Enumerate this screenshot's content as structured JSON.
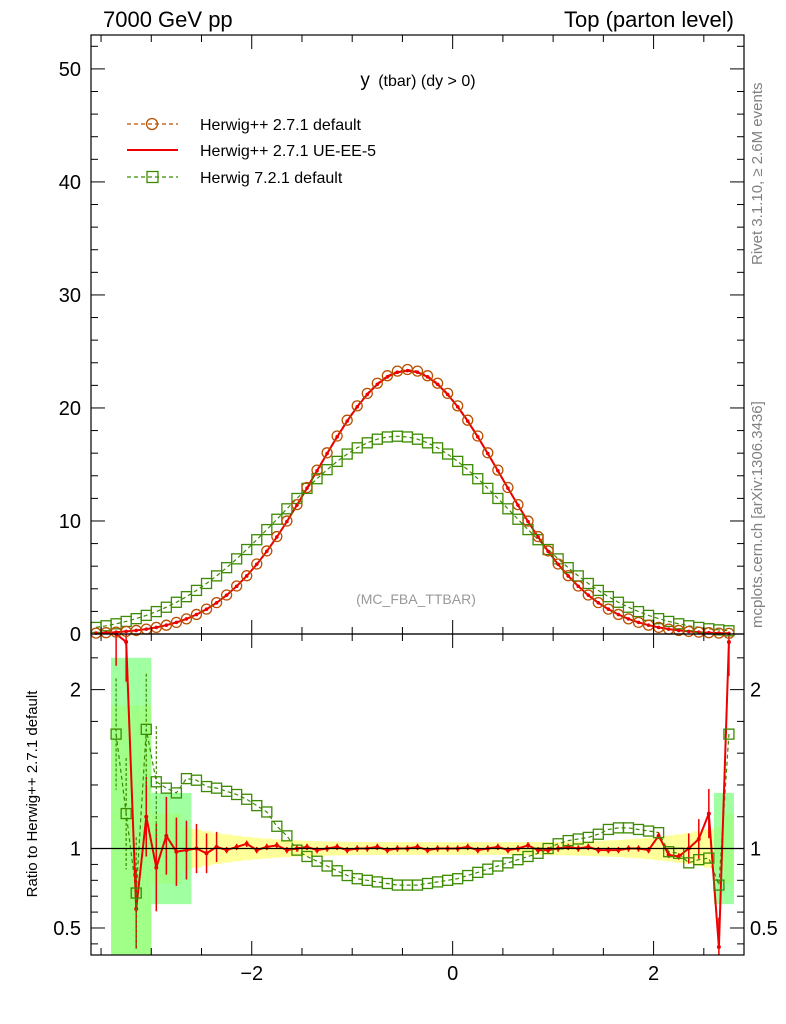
{
  "header": {
    "left": "7000 GeV pp",
    "right": "Top (parton level)"
  },
  "side_labels": {
    "top": "Rivet 3.1.10, ≥ 2.6M events",
    "bottom": "mcplots.cern.ch [arXiv:1306.3436]"
  },
  "plot_title_main": "y",
  "plot_title_sub": "(tbar) (dy > 0)",
  "watermark": "(MC_FBA_TTBAR)",
  "legend": [
    {
      "label": "Herwig++ 2.7.1 default",
      "color": "#b85000",
      "style": "dashed",
      "marker": "circle"
    },
    {
      "label": "Herwig++ 2.7.1 UE-EE-5",
      "color": "#ee0000",
      "style": "solid",
      "marker": "none"
    },
    {
      "label": "Herwig 7.2.1 default",
      "color": "#3b8a00",
      "style": "dashed",
      "marker": "square"
    }
  ],
  "chart_data": {
    "type": "line",
    "xlim": [
      -3.6,
      2.9
    ],
    "main": {
      "ylim": [
        0,
        53
      ],
      "yticks": [
        0,
        10,
        20,
        30,
        40,
        50
      ],
      "bands": [
        {
          "mu": -0.45,
          "amp": 23.4,
          "sigma": 0.92
        },
        {
          "mu": -0.45,
          "amp": 23.3,
          "sigma": 0.92
        },
        {
          "mu": -0.55,
          "amp": 17.5,
          "sigma": 1.15
        }
      ]
    },
    "ratio": {
      "ylim": [
        0.33,
        2.35
      ],
      "yticks": [
        0.5,
        1,
        2
      ],
      "ylabel": "Ratio to Herwig++ 2.7.1 default",
      "ue_ee5": {
        "x": [
          -3.35,
          -3.25,
          -3.15,
          -3.05,
          -2.95,
          -2.85,
          -2.75,
          -2.65,
          -2.55,
          -2.45,
          -2.35,
          -2.25,
          -2.15,
          -2.05,
          -1.95,
          -1.85,
          -1.75,
          -1.65,
          -1.55,
          -1.45,
          -1.35,
          -1.25,
          -1.15,
          -1.05,
          -0.95,
          -0.85,
          -0.75,
          -0.65,
          -0.55,
          -0.45,
          -0.35,
          -0.25,
          -0.15,
          -0.05,
          0.05,
          0.15,
          0.25,
          0.35,
          0.45,
          0.55,
          0.65,
          0.75,
          0.85,
          0.95,
          1.05,
          1.15,
          1.25,
          1.35,
          1.45,
          1.55,
          1.65,
          1.75,
          1.85,
          1.95,
          2.05,
          2.15,
          2.25,
          2.35,
          2.45,
          2.55,
          2.65,
          2.75
        ],
        "y": [
          2.4,
          2.3,
          0.62,
          1.2,
          0.88,
          1.08,
          0.98,
          0.99,
          1.0,
          0.97,
          1.01,
          0.99,
          1.01,
          1.03,
          0.99,
          1.01,
          1.02,
          0.99,
          1.0,
          1.01,
          0.99,
          1.0,
          1.01,
          0.99,
          1.0,
          1.0,
          1.01,
          0.99,
          1.0,
          1.0,
          1.01,
          0.99,
          1.0,
          1.0,
          1.0,
          1.01,
          0.99,
          1.0,
          1.01,
          0.99,
          1.0,
          1.02,
          0.99,
          0.99,
          1.0,
          1.01,
          1.0,
          1.01,
          0.99,
          0.99,
          0.99,
          1.0,
          1.0,
          0.99,
          1.08,
          0.96,
          0.95,
          1.0,
          1.06,
          1.22,
          0.38,
          2.3
        ]
      },
      "h7": {
        "x": [
          -3.35,
          -3.25,
          -3.15,
          -3.05,
          -2.95,
          -2.85,
          -2.75,
          -2.65,
          -2.55,
          -2.45,
          -2.35,
          -2.25,
          -2.15,
          -2.05,
          -1.95,
          -1.85,
          -1.75,
          -1.65,
          -1.55,
          -1.45,
          -1.35,
          -1.25,
          -1.15,
          -1.05,
          -0.95,
          -0.85,
          -0.75,
          -0.65,
          -0.55,
          -0.45,
          -0.35,
          -0.25,
          -0.15,
          -0.05,
          0.05,
          0.15,
          0.25,
          0.35,
          0.45,
          0.55,
          0.65,
          0.75,
          0.85,
          0.95,
          1.05,
          1.15,
          1.25,
          1.35,
          1.45,
          1.55,
          1.65,
          1.75,
          1.85,
          1.95,
          2.05,
          2.15,
          2.25,
          2.35,
          2.45,
          2.55,
          2.65,
          2.75
        ],
        "y": [
          1.72,
          1.22,
          0.72,
          1.75,
          1.42,
          1.38,
          1.35,
          1.44,
          1.43,
          1.39,
          1.38,
          1.36,
          1.34,
          1.31,
          1.27,
          1.23,
          1.14,
          1.08,
          0.99,
          0.95,
          0.92,
          0.89,
          0.86,
          0.83,
          0.81,
          0.8,
          0.79,
          0.78,
          0.77,
          0.77,
          0.77,
          0.78,
          0.79,
          0.8,
          0.81,
          0.83,
          0.85,
          0.87,
          0.89,
          0.91,
          0.93,
          0.95,
          0.97,
          1.0,
          1.03,
          1.05,
          1.06,
          1.07,
          1.09,
          1.12,
          1.13,
          1.13,
          1.12,
          1.11,
          1.1,
          0.98,
          0.97,
          0.91,
          0.93,
          0.94,
          0.77,
          1.72
        ]
      }
    }
  }
}
